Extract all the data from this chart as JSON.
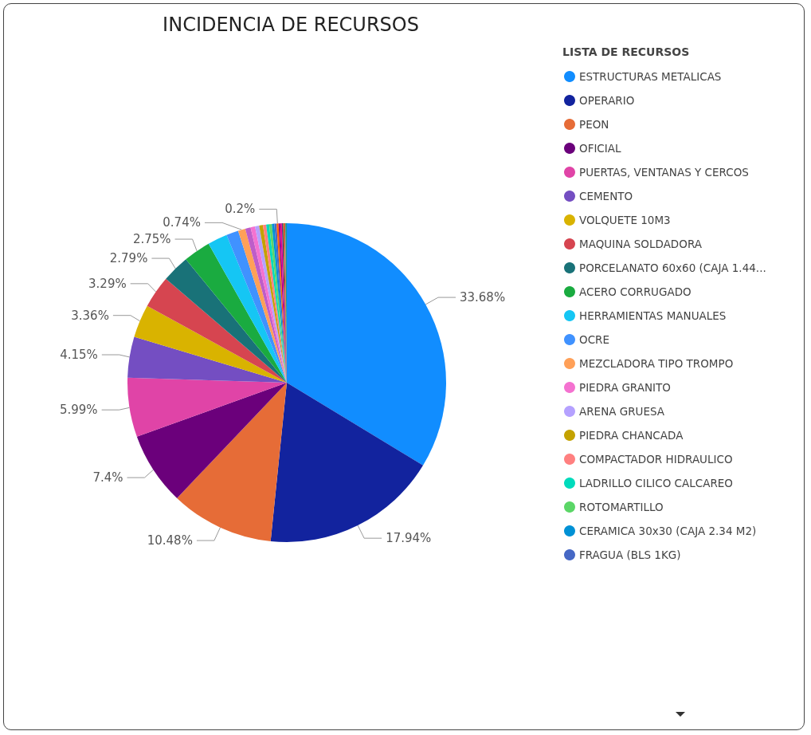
{
  "chart_data": {
    "type": "pie",
    "title": "INCIDENCIA DE RECURSOS",
    "legend_title": "LISTA DE RECURSOS",
    "legend": "right",
    "categories": [
      "ESTRUCTURAS METALICAS",
      "OPERARIO",
      "PEON",
      "OFICIAL",
      "PUERTAS, VENTANAS Y CERCOS",
      "CEMENTO",
      "VOLQUETE 10M3",
      "MAQUINA SOLDADORA",
      "PORCELANATO 60x60 (CAJA 1.44...",
      "ACERO CORRUGADO",
      "HERRAMIENTAS MANUALES",
      "OCRE",
      "MEZCLADORA TIPO TROMPO",
      null,
      "PIEDRA GRANITO",
      "ARENA GRUESA",
      "PIEDRA CHANCADA",
      "COMPACTADOR HIDRAULICO",
      "LADRILLO CILICO CALCAREO",
      "ROTOMARTILLO",
      "CERAMICA 30x30 (CAJA 2.34 M2)",
      "FRAGUA (BLS 1KG)",
      null,
      null,
      null,
      null,
      null,
      null,
      null
    ],
    "values": [
      33.68,
      17.94,
      10.48,
      7.4,
      5.99,
      4.15,
      3.36,
      3.29,
      2.79,
      2.75,
      2.0,
      1.23,
      0.74,
      0.55,
      0.45,
      0.42,
      0.38,
      0.33,
      0.3,
      0.27,
      0.25,
      0.22,
      0.2,
      0.18,
      0.15,
      0.13,
      0.12,
      0.1,
      0.15
    ],
    "value_labels": [
      "33.68%",
      "17.94%",
      "10.48%",
      "7.4%",
      "5.99%",
      "4.15%",
      "3.36%",
      "3.29%",
      "2.79%",
      "2.75%",
      null,
      null,
      "0.74%",
      null,
      null,
      null,
      null,
      null,
      null,
      null,
      null,
      null,
      "0.2%",
      null,
      null,
      null,
      null,
      null,
      null
    ],
    "colors": [
      "#118dff",
      "#12239e",
      "#e66c37",
      "#6b007b",
      "#e044a7",
      "#744ec2",
      "#d9b300",
      "#d64550",
      "#197278",
      "#1aab40",
      "#15c6f4",
      "#4092ff",
      "#ffa058",
      "#be5dc9",
      "#f472d0",
      "#b5a1ff",
      "#c4a200",
      "#ff8080",
      "#00dbbc",
      "#5bd667",
      "#0091d5",
      "#4668c5",
      "#ff6300",
      "#99008a",
      "#ec008c",
      "#533285",
      "#99700a",
      "#ff4141",
      "#1f9a85"
    ]
  }
}
